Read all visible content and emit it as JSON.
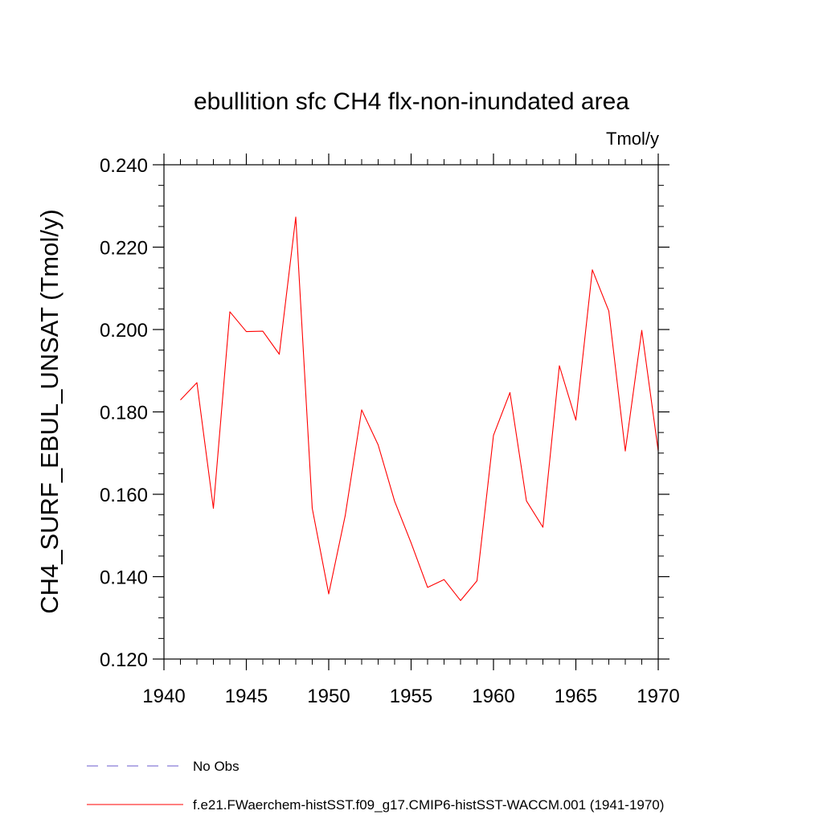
{
  "chart_data": {
    "type": "line",
    "title": "ebullition sfc CH4 flx-non-inundated area",
    "units": "Tmol/y",
    "xlabel": "",
    "ylabel": "CH4_SURF_EBUL_UNSAT  (Tmol/y)",
    "xlim": [
      1940,
      1970
    ],
    "ylim": [
      0.12,
      0.24
    ],
    "x_ticks": [
      "1940",
      "1945",
      "1950",
      "1955",
      "1960",
      "1965",
      "1970"
    ],
    "y_ticks": [
      "0.120",
      "0.140",
      "0.160",
      "0.180",
      "0.200",
      "0.220",
      "0.240"
    ],
    "grid": false,
    "legend_position": "bottom-left",
    "series": [
      {
        "name": "No Obs",
        "color": "#6a5acd",
        "style": "dashed",
        "x": [],
        "values": []
      },
      {
        "name": "f.e21.FWaerchem-histSST.f09_g17.CMIP6-histSST-WACCM.001 (1941-1970)",
        "color": "#ff0000",
        "style": "solid",
        "x": [
          1941,
          1942,
          1943,
          1944,
          1945,
          1946,
          1947,
          1948,
          1949,
          1950,
          1951,
          1952,
          1953,
          1954,
          1955,
          1956,
          1957,
          1958,
          1959,
          1960,
          1961,
          1962,
          1963,
          1964,
          1965,
          1966,
          1967,
          1968,
          1969,
          1970
        ],
        "values": [
          0.1829,
          0.1871,
          0.1566,
          0.2043,
          0.1995,
          0.1996,
          0.194,
          0.2273,
          0.1566,
          0.1358,
          0.1548,
          0.1805,
          0.172,
          0.1583,
          0.1482,
          0.1374,
          0.1393,
          0.1342,
          0.139,
          0.1743,
          0.1847,
          0.1584,
          0.152,
          0.1912,
          0.178,
          0.2145,
          0.2045,
          0.1705,
          0.1998,
          0.1705
        ]
      }
    ]
  }
}
